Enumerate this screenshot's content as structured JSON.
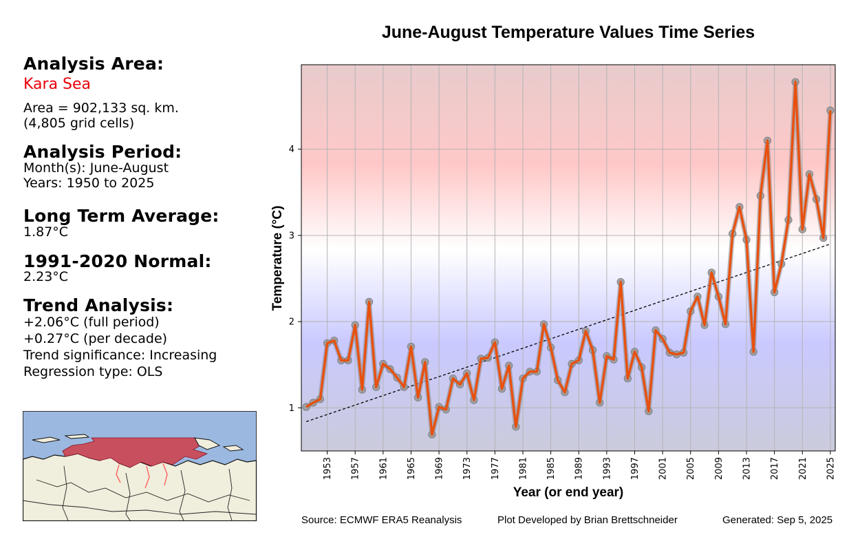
{
  "info_panel": {
    "analysis_area_heading": "Analysis Area:",
    "area_name": "Kara Sea",
    "area_size": "Area = 902,133 sq. km.",
    "grid_cells": "(4,805 grid cells)",
    "analysis_period_heading": "Analysis Period:",
    "months": "Month(s): June-August",
    "years": "Years: 1950 to 2025",
    "long_term_avg_heading": "Long Term Average:",
    "long_term_avg_value": "1.87°C",
    "normal_heading": "1991-2020 Normal:",
    "normal_value": "2.23°C",
    "trend_heading": "Trend Analysis:",
    "trend_full": "+2.06°C (full period)",
    "trend_decade": "+0.27°C (per decade)",
    "trend_significance": "Trend significance: Increasing",
    "regression_type": "Regression type: OLS"
  },
  "footer": {
    "source": "Source: ECMWF ERA5 Reanalysis",
    "developer": "Plot Developed by Brian Brettschneider",
    "generated": "Generated: Sep 5, 2025"
  },
  "colors": {
    "line": "#e8500e",
    "marker": "#9a9a9a",
    "area_name": "#e8000b",
    "ocean": "#9bb8e0",
    "land": "#f0eedc",
    "region": "#c8505e"
  },
  "chart_data": {
    "type": "line",
    "title": "June-August Temperature Values Time Series",
    "xlabel": "Year (or end year)",
    "ylabel": "Temperature (°C)",
    "xlim": [
      1949.3,
      2025.7
    ],
    "ylim": [
      0.5,
      4.98
    ],
    "xticks": [
      1953,
      1957,
      1961,
      1965,
      1969,
      1973,
      1977,
      1981,
      1985,
      1989,
      1993,
      1997,
      2001,
      2005,
      2009,
      2013,
      2017,
      2021,
      2025
    ],
    "yticks": [
      1,
      2,
      3,
      4
    ],
    "grid": true,
    "background": "vertical gradient blue (low) to red (high)",
    "x": [
      1950,
      1951,
      1952,
      1953,
      1954,
      1955,
      1956,
      1957,
      1958,
      1959,
      1960,
      1961,
      1962,
      1963,
      1964,
      1965,
      1966,
      1967,
      1968,
      1969,
      1970,
      1971,
      1972,
      1973,
      1974,
      1975,
      1976,
      1977,
      1978,
      1979,
      1980,
      1981,
      1982,
      1983,
      1984,
      1985,
      1986,
      1987,
      1988,
      1989,
      1990,
      1991,
      1992,
      1993,
      1994,
      1995,
      1996,
      1997,
      1998,
      1999,
      2000,
      2001,
      2002,
      2003,
      2004,
      2005,
      2006,
      2007,
      2008,
      2009,
      2010,
      2011,
      2012,
      2013,
      2014,
      2015,
      2016,
      2017,
      2018,
      2019,
      2020,
      2021,
      2022,
      2023,
      2024,
      2025
    ],
    "series": [
      {
        "values": [
          1.01,
          1.06,
          1.1,
          1.75,
          1.78,
          1.55,
          1.55,
          1.96,
          1.21,
          2.23,
          1.24,
          1.51,
          1.45,
          1.35,
          1.24,
          1.71,
          1.12,
          1.53,
          0.69,
          1.01,
          0.98,
          1.34,
          1.27,
          1.4,
          1.09,
          1.57,
          1.58,
          1.76,
          1.22,
          1.49,
          0.78,
          1.34,
          1.42,
          1.42,
          1.97,
          1.7,
          1.32,
          1.18,
          1.51,
          1.55,
          1.89,
          1.67,
          1.06,
          1.6,
          1.56,
          2.46,
          1.34,
          1.65,
          1.47,
          0.96,
          1.9,
          1.8,
          1.64,
          1.62,
          1.64,
          2.12,
          2.29,
          1.96,
          2.57,
          2.29,
          1.97,
          3.02,
          3.33,
          2.95,
          1.65,
          3.46,
          4.1,
          2.34,
          2.67,
          3.18,
          4.78,
          3.07,
          3.71,
          3.42,
          2.97,
          4.45
        ]
      }
    ],
    "trend": {
      "x": [
        1950,
        2025
      ],
      "y": [
        0.84,
        2.9
      ],
      "style": "dashed"
    }
  }
}
